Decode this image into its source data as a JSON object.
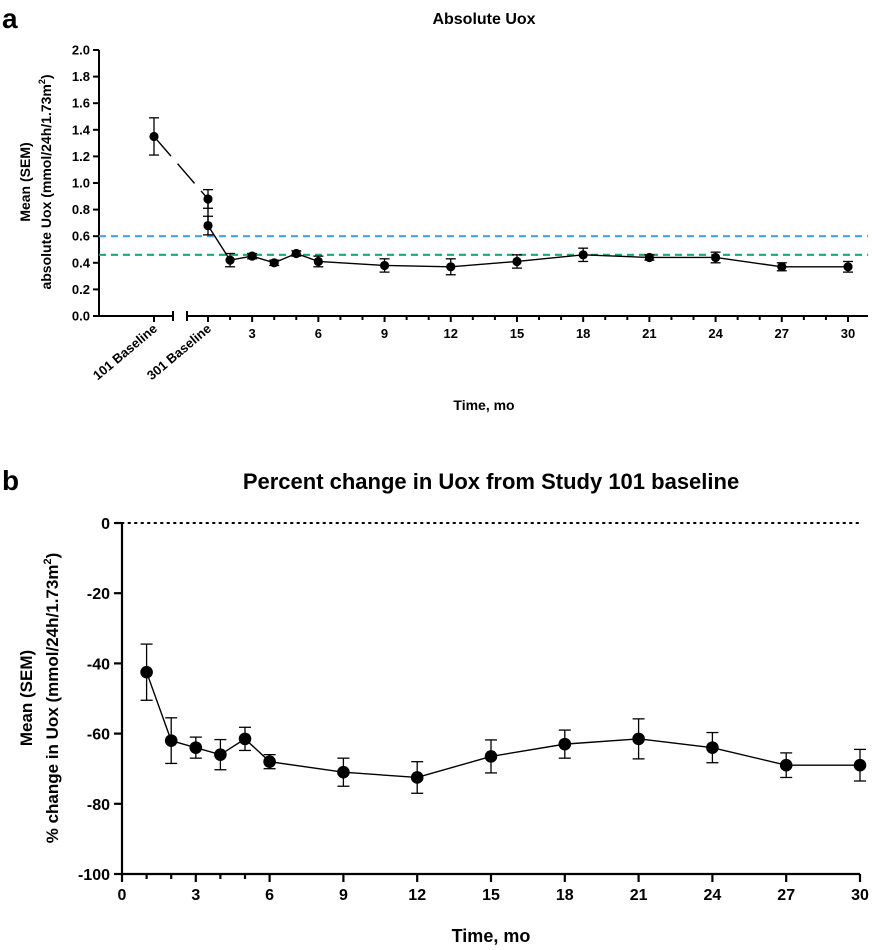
{
  "chart_data": [
    {
      "panel": "a",
      "type": "line",
      "title": "Absolute Uox",
      "ylabel_line1": "Mean (SEM)",
      "ylabel_line2_prefix": "absolute Uox (mmol/24h/1.73m",
      "ylabel_line2_sup": "2",
      "ylabel_line2_suffix": ")",
      "xlabel": "Time, mo",
      "ylim": [
        0,
        2.0
      ],
      "yticks": [
        "0.0",
        "0.2",
        "0.4",
        "0.6",
        "0.8",
        "1.0",
        "1.2",
        "1.4",
        "1.6",
        "1.8",
        "2.0"
      ],
      "xticks": [
        3,
        6,
        9,
        12,
        15,
        18,
        21,
        24,
        27,
        30
      ],
      "baseline_labels": [
        "101 Baseline",
        "301 Baseline"
      ],
      "reference_lines": [
        {
          "y": 0.6,
          "color": "#4a9ff0"
        },
        {
          "y": 0.46,
          "color": "#1aa86b"
        }
      ],
      "points": [
        {
          "x": "101 Baseline",
          "y": 1.35,
          "sem": 0.14
        },
        {
          "x": "301 Baseline",
          "y": 0.88,
          "sem": 0.07
        },
        {
          "x": 1,
          "y": 0.68,
          "sem": 0.07
        },
        {
          "x": 2,
          "y": 0.42,
          "sem": 0.05
        },
        {
          "x": 3,
          "y": 0.45,
          "sem": 0.02
        },
        {
          "x": 4,
          "y": 0.4,
          "sem": 0.02
        },
        {
          "x": 5,
          "y": 0.47,
          "sem": 0.02
        },
        {
          "x": 6,
          "y": 0.41,
          "sem": 0.04
        },
        {
          "x": 9,
          "y": 0.38,
          "sem": 0.05
        },
        {
          "x": 12,
          "y": 0.37,
          "sem": 0.06
        },
        {
          "x": 15,
          "y": 0.41,
          "sem": 0.05
        },
        {
          "x": 18,
          "y": 0.46,
          "sem": 0.05
        },
        {
          "x": 21,
          "y": 0.44,
          "sem": 0.02
        },
        {
          "x": 24,
          "y": 0.44,
          "sem": 0.04
        },
        {
          "x": 27,
          "y": 0.37,
          "sem": 0.03
        },
        {
          "x": 30,
          "y": 0.37,
          "sem": 0.04
        }
      ]
    },
    {
      "panel": "b",
      "type": "line",
      "title": "Percent change in Uox from Study 101 baseline",
      "ylabel_line1": "Mean (SEM)",
      "ylabel_line2_prefix": "% change in Uox (mmol/24h/1.73m",
      "ylabel_line2_sup": "2",
      "ylabel_line2_suffix": ")",
      "xlabel": "Time, mo",
      "xlim": [
        0,
        30
      ],
      "ylim": [
        -100,
        0
      ],
      "xticks": [
        0,
        3,
        6,
        9,
        12,
        15,
        18,
        21,
        24,
        27,
        30
      ],
      "yticks": [
        0,
        -20,
        -40,
        -60,
        -80,
        -100
      ],
      "reference_lines": [
        {
          "y": 0,
          "style": "dotted"
        }
      ],
      "points": [
        {
          "x": 1,
          "y": -42.5,
          "sem": 8
        },
        {
          "x": 2,
          "y": -62,
          "sem": 6.5
        },
        {
          "x": 3,
          "y": -64,
          "sem": 3
        },
        {
          "x": 4,
          "y": -66,
          "sem": 4.3
        },
        {
          "x": 5,
          "y": -61.5,
          "sem": 3.3
        },
        {
          "x": 6,
          "y": -68,
          "sem": 2
        },
        {
          "x": 9,
          "y": -71,
          "sem": 4
        },
        {
          "x": 12,
          "y": -72.5,
          "sem": 4.5
        },
        {
          "x": 15,
          "y": -66.5,
          "sem": 4.7
        },
        {
          "x": 18,
          "y": -63,
          "sem": 4
        },
        {
          "x": 21,
          "y": -61.5,
          "sem": 5.7
        },
        {
          "x": 24,
          "y": -64,
          "sem": 4.3
        },
        {
          "x": 27,
          "y": -69,
          "sem": 3.5
        },
        {
          "x": 30,
          "y": -69,
          "sem": 4.5
        }
      ]
    }
  ]
}
